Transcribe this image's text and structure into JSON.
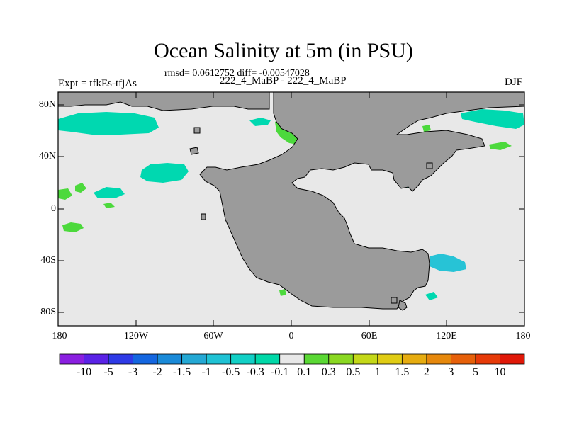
{
  "title": "Ocean Salinity at 5m (in PSU)",
  "stats": "rmsd= 0.0612752 diff= -0.00547028",
  "runs": "222_4_MaBP - 222_4_MaBP",
  "expt": "Expt = tfkEs-tfjAs",
  "season": "DJF",
  "colors": {
    "ocean_neutral": "#e8e8e8",
    "land": "#9b9b9b",
    "positive_small": "#4cd93c",
    "negative_small": "#00d8b0",
    "negative_mid": "#27c3d6"
  },
  "y_axis": {
    "labels": [
      "80N",
      "40N",
      "0",
      "40S",
      "80S"
    ],
    "values": [
      80,
      40,
      0,
      -40,
      -80
    ],
    "range": [
      -90,
      90
    ]
  },
  "x_axis": {
    "labels": [
      "180",
      "120W",
      "60W",
      "0",
      "60E",
      "120E",
      "180"
    ],
    "values": [
      -180,
      -120,
      -60,
      0,
      60,
      120,
      180
    ],
    "range": [
      -180,
      180
    ]
  },
  "colorbar": {
    "labels": [
      "-10",
      "-5",
      "-3",
      "-2",
      "-1.5",
      "-1",
      "-0.5",
      "-0.3",
      "-0.1",
      "0.1",
      "0.3",
      "0.5",
      "1",
      "1.5",
      "2",
      "3",
      "5",
      "10"
    ],
    "colors": [
      "#8a1fe0",
      "#5a22e6",
      "#2e3ae6",
      "#1466e0",
      "#1a8ad8",
      "#24a8d4",
      "#1fc2d4",
      "#12d0c6",
      "#00d8a8",
      "#e8e8e8",
      "#5ad834",
      "#8ad822",
      "#c4d818",
      "#e0cc14",
      "#e6ac10",
      "#e6880c",
      "#e6600a",
      "#e63a08",
      "#e01808"
    ]
  }
}
